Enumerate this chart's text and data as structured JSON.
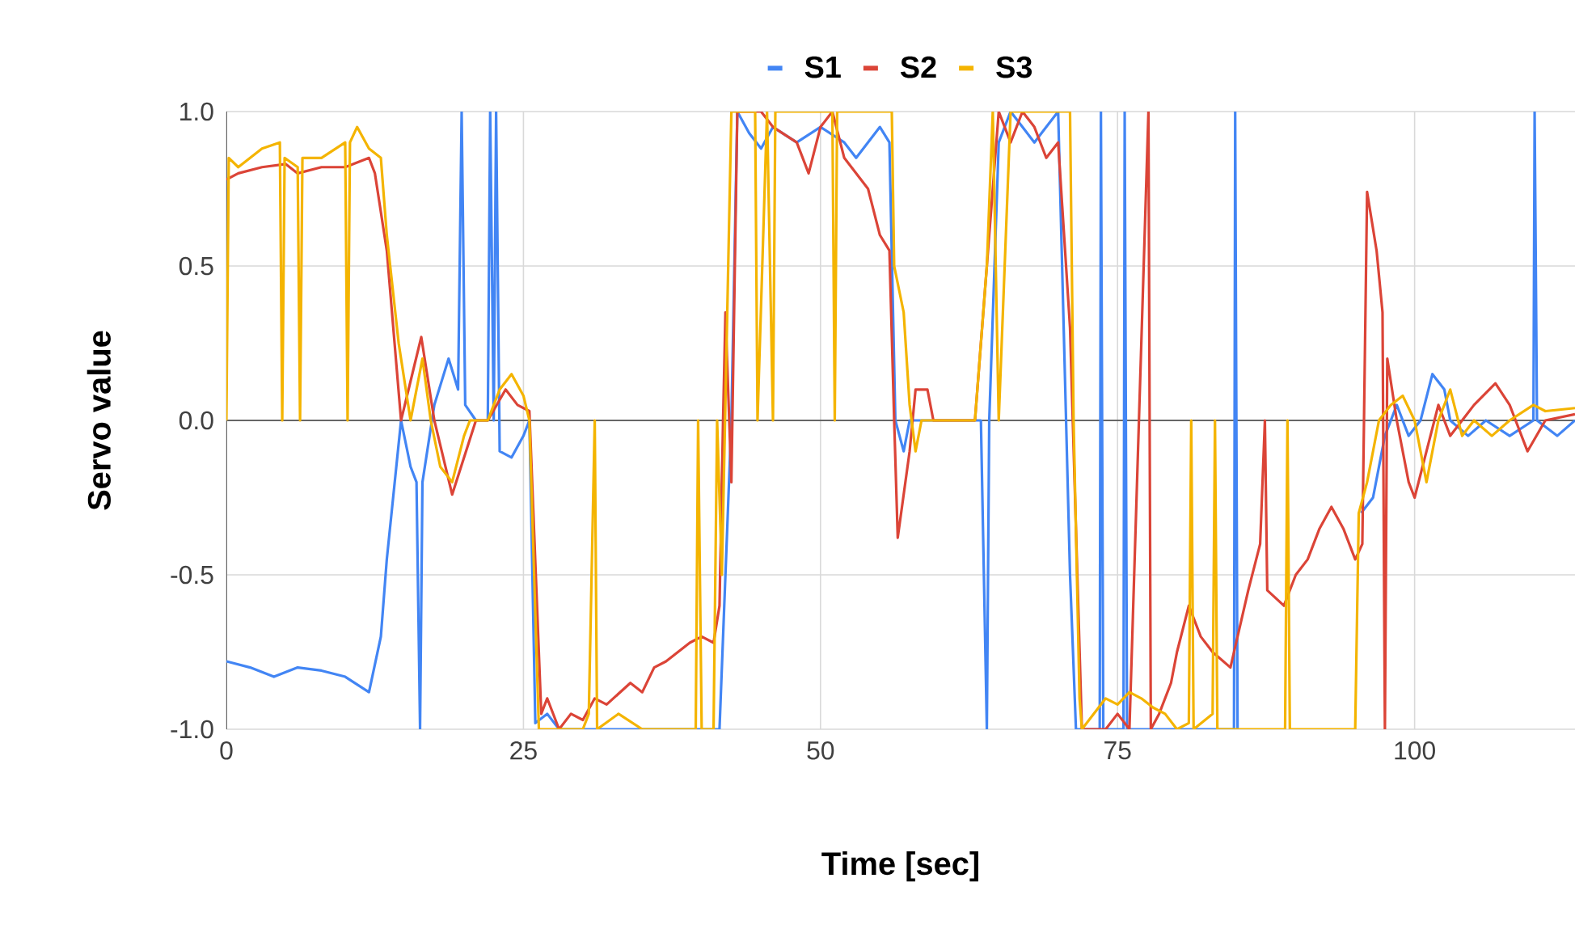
{
  "chart_data": {
    "type": "line",
    "xlabel": "Time [sec]",
    "ylabel": "Servo value",
    "xlim": [
      0,
      113.5
    ],
    "ylim": [
      -1,
      1
    ],
    "xticks": [
      0,
      25,
      50,
      75,
      100
    ],
    "yticks": [
      {
        "value": -1,
        "label": "-1.0"
      },
      {
        "value": -0.5,
        "label": "-0.5"
      },
      {
        "value": 0,
        "label": "0.0"
      },
      {
        "value": 0.5,
        "label": "0.5"
      },
      {
        "value": 1,
        "label": "1.0"
      }
    ],
    "grid": true,
    "legend": "top",
    "marker": "none",
    "line_style": "solid",
    "series": [
      {
        "name": "S1",
        "color": "#4285f4",
        "x": [
          0,
          2,
          4,
          6,
          8,
          10,
          12,
          13,
          13.5,
          14.7,
          15.5,
          16,
          16.3,
          16.5,
          17.5,
          18.7,
          19.5,
          19.8,
          20.1,
          21,
          22,
          22.2,
          22.5,
          22.7,
          23,
          24,
          25,
          25.5,
          26,
          27,
          28,
          35,
          41.5,
          42.5,
          43,
          44,
          45,
          46,
          48,
          50,
          52,
          53,
          55,
          55.8,
          56.3,
          57,
          57.5,
          63.5,
          64,
          64.2,
          65,
          66,
          67,
          68,
          69,
          70,
          71,
          71.5,
          73.5,
          73.6,
          73.8,
          75.5,
          75.6,
          75.8,
          84.8,
          84.9,
          85.1,
          95,
          95.5,
          96.5,
          97.5,
          98.5,
          99.5,
          100.5,
          101.5,
          102.5,
          103,
          104.5,
          106,
          108,
          110,
          110.1,
          110.3,
          112,
          113.5
        ],
        "values": [
          -0.78,
          -0.8,
          -0.83,
          -0.8,
          -0.81,
          -0.83,
          -0.88,
          -0.7,
          -0.45,
          0.0,
          -0.15,
          -0.2,
          -1.0,
          -0.2,
          0.05,
          0.2,
          0.1,
          1.0,
          0.05,
          0.0,
          0.0,
          1.0,
          0.0,
          1.0,
          -0.1,
          -0.12,
          -0.05,
          0.0,
          -0.98,
          -0.95,
          -1.0,
          -1.0,
          -1.0,
          0.0,
          1.0,
          0.93,
          0.88,
          0.95,
          0.9,
          0.95,
          0.9,
          0.85,
          0.95,
          0.9,
          0.0,
          -0.1,
          0.0,
          0.0,
          -1.0,
          0.0,
          0.9,
          1.0,
          0.95,
          0.9,
          0.95,
          1.0,
          -0.5,
          -1.0,
          -1.0,
          1.0,
          -1.0,
          -1.0,
          1.0,
          -1.0,
          -1.0,
          1.0,
          -1.0,
          null,
          -0.3,
          -0.25,
          -0.05,
          0.05,
          -0.05,
          0.0,
          0.15,
          0.1,
          0.0,
          -0.05,
          0.0,
          -0.05,
          0.0,
          1.0,
          0.0,
          -0.05,
          0.0
        ]
      },
      {
        "name": "S2",
        "color": "#db4437",
        "x": [
          0,
          1,
          3,
          5,
          6,
          8,
          10,
          12,
          12.5,
          13.5,
          14.7,
          16.4,
          17.5,
          19,
          21,
          22,
          23.5,
          24.5,
          25.5,
          26.5,
          27,
          28,
          29,
          30,
          31,
          32,
          34,
          35,
          36,
          37,
          38,
          39,
          40,
          41,
          41.5,
          41.8,
          42,
          42.5,
          43,
          45,
          46,
          48,
          49,
          50,
          51,
          52,
          54,
          55,
          55.8,
          56.2,
          56.5,
          57.5,
          58,
          59,
          59.5,
          63,
          64,
          65,
          66,
          67,
          68,
          69,
          70,
          71,
          72,
          74,
          75,
          76,
          77.6,
          77.8,
          78.5,
          79.5,
          80,
          81,
          82,
          83,
          84.5,
          86,
          87,
          87.4,
          87.6,
          89,
          90,
          91,
          92,
          93,
          94,
          95,
          95.6,
          96,
          96.8,
          97.3,
          97.5,
          97.7,
          98.5,
          99.5,
          100,
          101,
          102,
          103,
          105,
          106.8,
          108,
          109.5,
          111,
          113.5
        ],
        "values": [
          0.78,
          0.8,
          0.82,
          0.83,
          0.8,
          0.82,
          0.82,
          0.85,
          0.8,
          0.55,
          0.0,
          0.27,
          0.0,
          -0.24,
          0.0,
          0.0,
          0.1,
          0.05,
          0.03,
          -0.95,
          -0.9,
          -1.0,
          -0.95,
          -0.97,
          -0.9,
          -0.92,
          -0.85,
          -0.88,
          -0.8,
          -0.78,
          -0.75,
          -0.72,
          -0.7,
          -0.72,
          -0.6,
          0.0,
          0.35,
          -0.2,
          1.0,
          1.0,
          0.95,
          0.9,
          0.8,
          0.95,
          1.0,
          0.85,
          0.75,
          0.6,
          0.55,
          0.0,
          -0.38,
          -0.1,
          0.1,
          0.1,
          0.0,
          0.0,
          0.5,
          1.0,
          0.9,
          1.0,
          0.95,
          0.85,
          0.9,
          0.3,
          -1.0,
          -1.0,
          -0.95,
          -1.0,
          1.0,
          -1.0,
          -0.95,
          -0.85,
          -0.75,
          -0.6,
          -0.7,
          -0.75,
          -0.8,
          -0.55,
          -0.4,
          0.0,
          -0.55,
          -0.6,
          -0.5,
          -0.45,
          -0.35,
          -0.28,
          -0.35,
          -0.45,
          -0.4,
          0.74,
          0.55,
          0.35,
          -1.0,
          0.2,
          0.0,
          -0.2,
          -0.25,
          -0.1,
          0.05,
          -0.05,
          0.05,
          0.12,
          0.05,
          -0.1,
          0.0,
          0.02
        ]
      },
      {
        "name": "S3",
        "color": "#f4b400",
        "x": [
          0,
          0.2,
          1,
          3,
          4.5,
          4.7,
          4.9,
          6,
          6.2,
          6.4,
          8,
          10,
          10.2,
          10.4,
          11,
          12,
          13,
          13.5,
          14.5,
          15.5,
          16.5,
          17.2,
          18,
          19,
          20,
          20.5,
          22,
          23,
          24,
          25,
          25.5,
          26.3,
          30,
          30.5,
          31,
          31.2,
          33,
          35,
          39.5,
          39.7,
          40,
          41,
          41.3,
          41.7,
          42.5,
          44.5,
          44.7,
          45.5,
          46,
          46.2,
          51,
          51.2,
          51.4,
          56,
          56.2,
          57,
          57.5,
          58,
          58.5,
          63,
          64,
          64.5,
          65,
          66,
          71,
          71.3,
          71.8,
          72,
          73,
          74,
          75,
          76,
          77,
          78,
          79,
          80,
          81,
          81.2,
          81.4,
          83,
          83.2,
          83.4,
          85,
          89.1,
          89.3,
          89.5,
          95,
          95.3,
          96,
          97,
          98,
          99,
          100,
          101,
          102,
          103,
          104,
          105,
          106.5,
          108,
          110,
          111,
          113.5
        ],
        "values": [
          0.0,
          0.85,
          0.82,
          0.88,
          0.9,
          0.0,
          0.85,
          0.82,
          0.0,
          0.85,
          0.85,
          0.9,
          0.0,
          0.9,
          0.95,
          0.88,
          0.85,
          0.6,
          0.25,
          0.0,
          0.2,
          0.0,
          -0.15,
          -0.2,
          -0.05,
          0.0,
          0.0,
          0.1,
          0.15,
          0.08,
          0.0,
          -1.0,
          -1.0,
          -0.95,
          0.0,
          -1.0,
          -0.95,
          -1.0,
          -1.0,
          0.0,
          -1.0,
          -1.0,
          0.0,
          -0.5,
          1.0,
          1.0,
          0.0,
          1.0,
          0.0,
          1.0,
          1.0,
          0.0,
          1.0,
          1.0,
          0.5,
          0.35,
          0.05,
          -0.1,
          0.0,
          0.0,
          0.5,
          1.0,
          0.0,
          1.0,
          1.0,
          0.0,
          -0.9,
          -1.0,
          -0.95,
          -0.9,
          -0.92,
          -0.88,
          -0.9,
          -0.93,
          -0.95,
          -1.0,
          -0.98,
          0.0,
          -1.0,
          -0.95,
          0.0,
          -1.0,
          -1.0,
          -1.0,
          0.0,
          -1.0,
          -1.0,
          -0.3,
          -0.2,
          0.0,
          0.05,
          0.08,
          0.0,
          -0.2,
          0.0,
          0.1,
          -0.05,
          0.0,
          -0.05,
          0.0,
          0.05,
          0.03,
          0.04
        ]
      }
    ]
  }
}
